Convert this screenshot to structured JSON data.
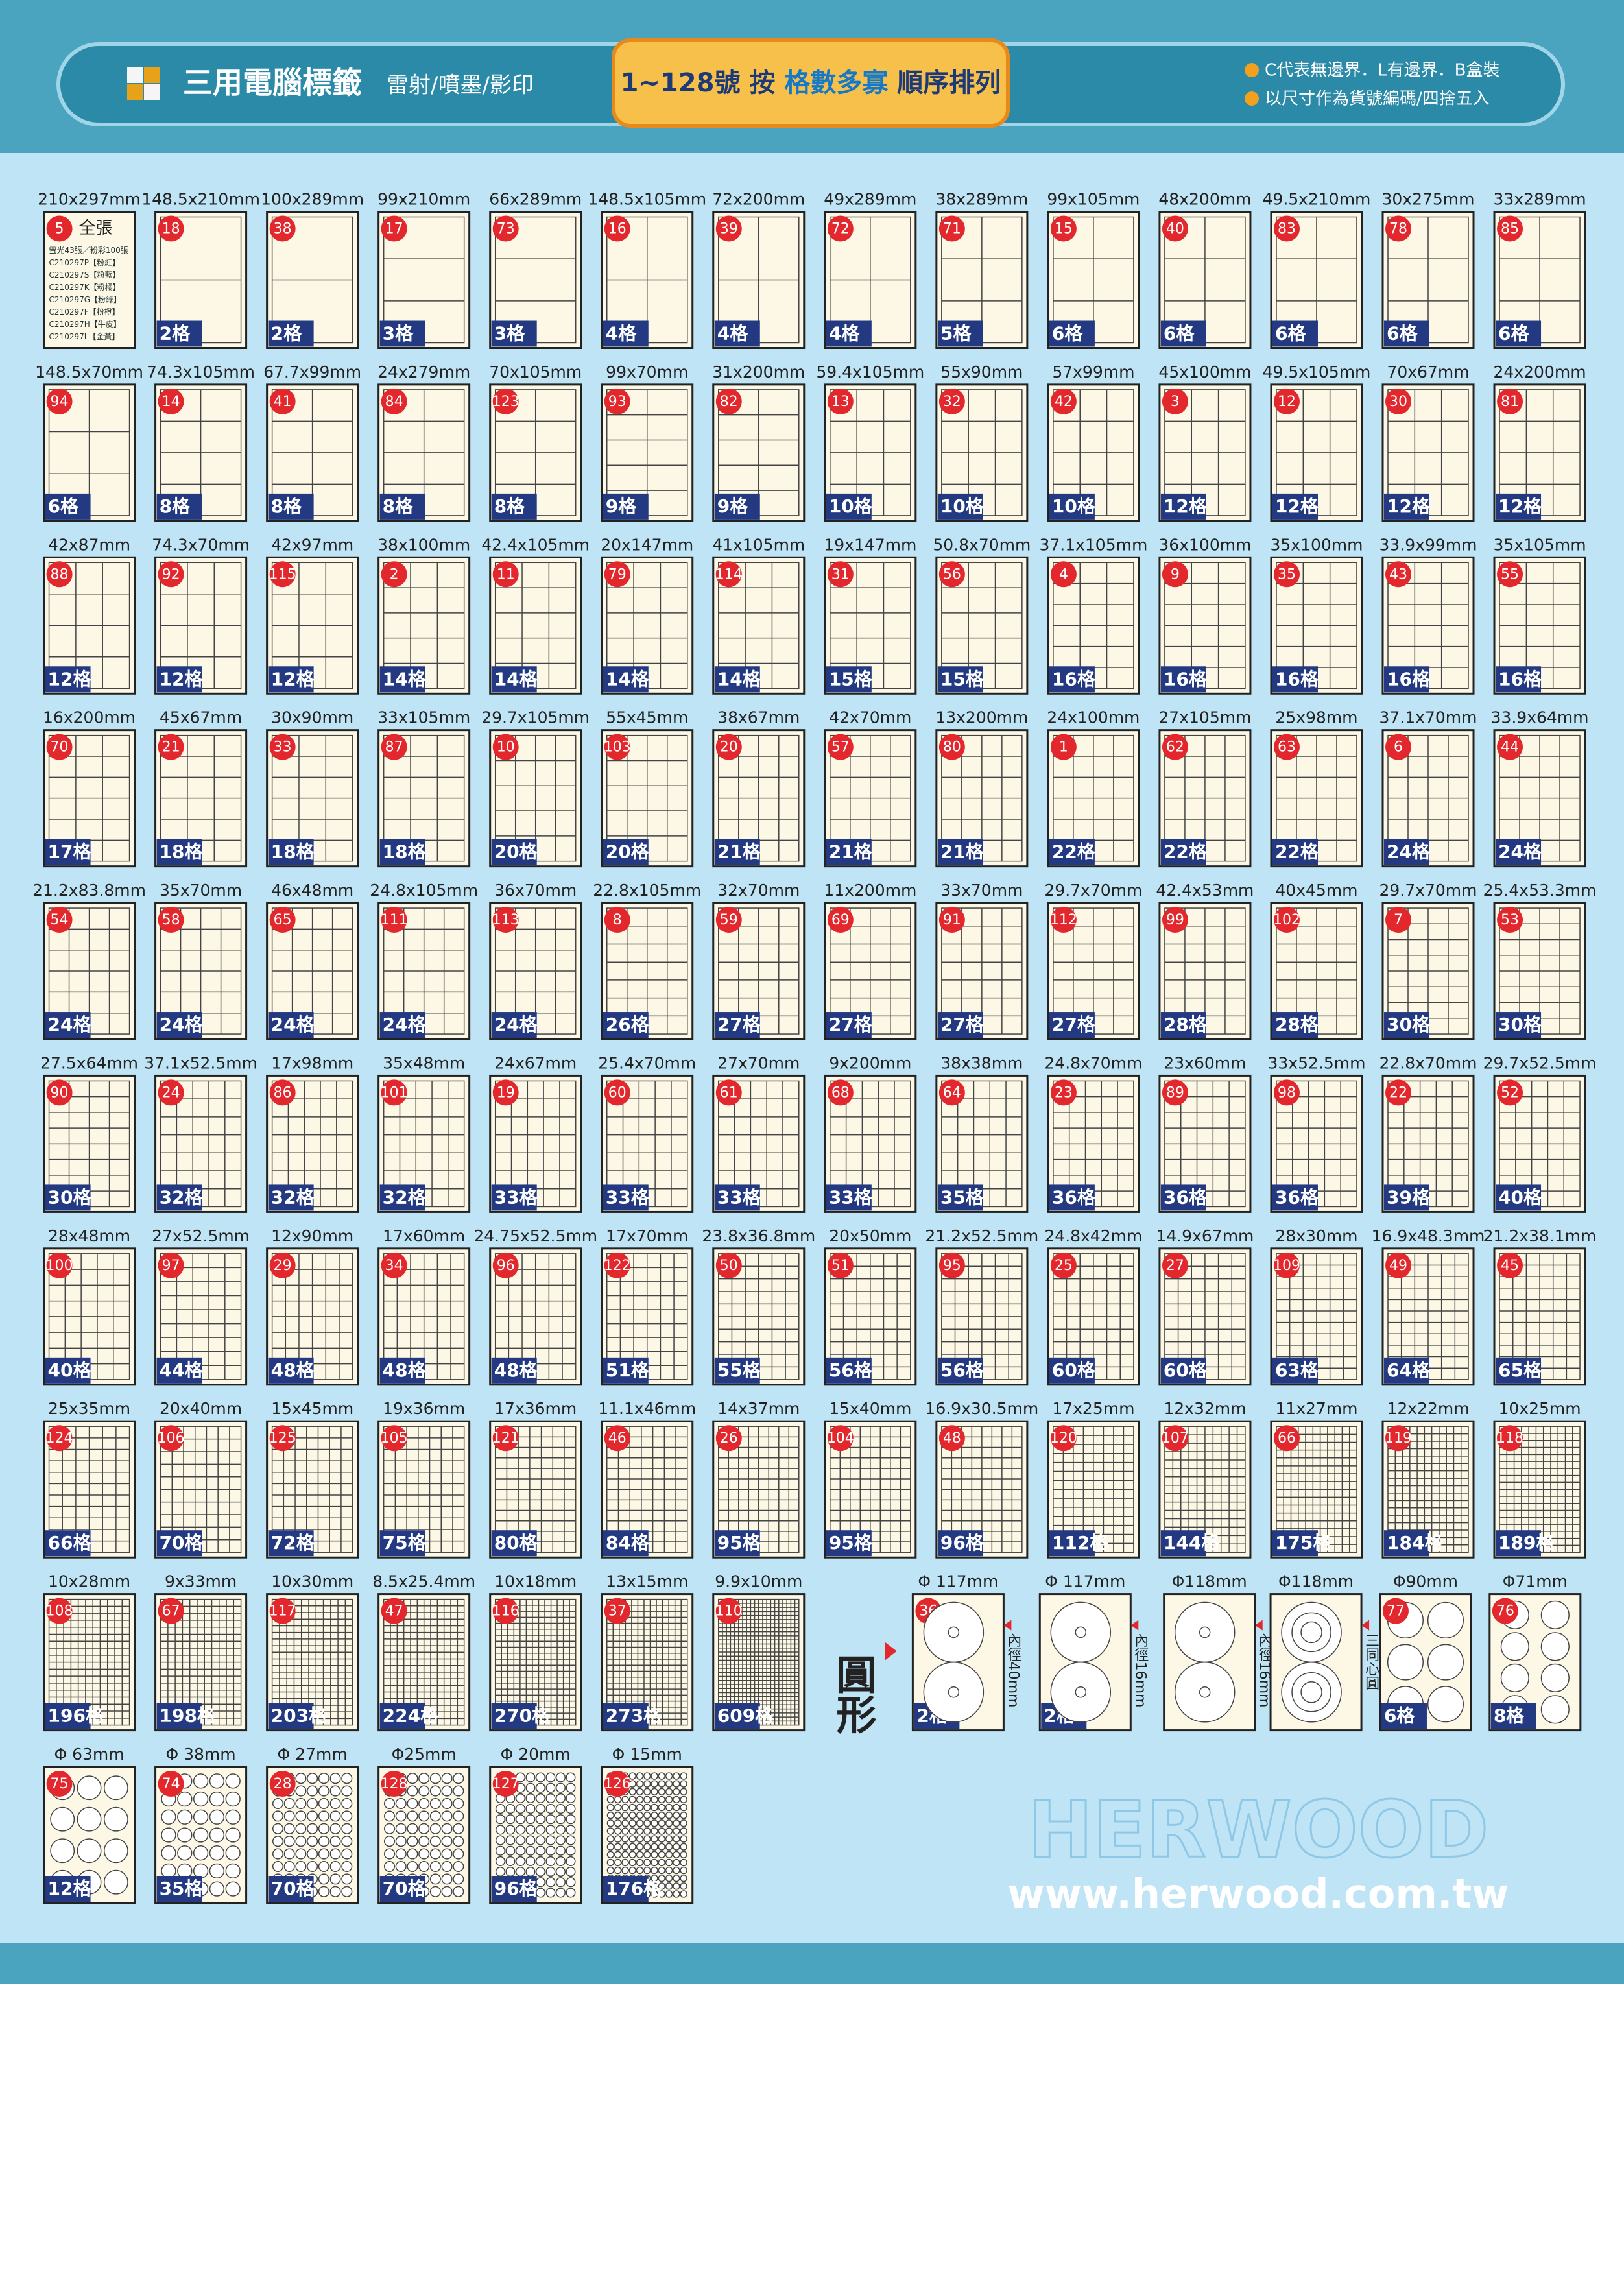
{
  "header": {
    "title": "三用電腦標籤",
    "subtitle": "雷射/噴墨/影印",
    "banner": [
      "1~128號 按 ",
      "格數多寡",
      " 順序排列"
    ],
    "notes": [
      "C代表無邊界．L有邊界．B盒裝",
      "以尺寸作為貨號編碼/四捨五入"
    ]
  },
  "sheets": [
    [
      {
        "size": "210x297mm",
        "no": 5,
        "title": "全張",
        "lines": [
          "螢光43張／粉彩100張",
          "C210297P【粉紅】",
          "C210297S【粉藍】",
          "C210297K【粉橘】",
          "C210297G【粉綠】",
          "C210297F【粉橙】",
          "C210297H【牛皮】",
          "C210297L【金黃】"
        ]
      },
      {
        "size": "148.5x210mm",
        "no": 18,
        "count": "2格"
      },
      {
        "size": "100x289mm",
        "no": 38,
        "count": "2格"
      },
      {
        "size": "99x210mm",
        "no": 17,
        "count": "3格"
      },
      {
        "size": "66x289mm",
        "no": 73,
        "count": "3格"
      },
      {
        "size": "148.5x105mm",
        "no": 16,
        "count": "4格"
      },
      {
        "size": "72x200mm",
        "no": 39,
        "count": "4格"
      },
      {
        "size": "49x289mm",
        "no": 72,
        "count": "4格"
      },
      {
        "size": "38x289mm",
        "no": 71,
        "count": "5格"
      },
      {
        "size": "99x105mm",
        "no": 15,
        "count": "6格"
      },
      {
        "size": "48x200mm",
        "no": 40,
        "count": "6格"
      },
      {
        "size": "49.5x210mm",
        "no": 83,
        "count": "6格"
      },
      {
        "size": "30x275mm",
        "no": 78,
        "count": "6格"
      },
      {
        "size": "33x289mm",
        "no": 85,
        "count": "6格"
      }
    ],
    [
      {
        "size": "148.5x70mm",
        "no": 94,
        "count": "6格"
      },
      {
        "size": "74.3x105mm",
        "no": 14,
        "count": "8格"
      },
      {
        "size": "67.7x99mm",
        "no": 41,
        "count": "8格"
      },
      {
        "size": "24x279mm",
        "no": 84,
        "count": "8格"
      },
      {
        "size": "70x105mm",
        "no": 123,
        "count": "8格"
      },
      {
        "size": "99x70mm",
        "no": 93,
        "count": "9格"
      },
      {
        "size": "31x200mm",
        "no": 82,
        "count": "9格"
      },
      {
        "size": "59.4x105mm",
        "no": 13,
        "count": "10格"
      },
      {
        "size": "55x90mm",
        "no": 32,
        "count": "10格"
      },
      {
        "size": "57x99mm",
        "no": 42,
        "count": "10格"
      },
      {
        "size": "45x100mm",
        "no": 3,
        "count": "12格"
      },
      {
        "size": "49.5x105mm",
        "no": 12,
        "count": "12格"
      },
      {
        "size": "70x67mm",
        "no": 30,
        "count": "12格"
      },
      {
        "size": "24x200mm",
        "no": 81,
        "count": "12格"
      }
    ],
    [
      {
        "size": "42x87mm",
        "no": 88,
        "count": "12格"
      },
      {
        "size": "74.3x70mm",
        "no": 92,
        "count": "12格"
      },
      {
        "size": "42x97mm",
        "no": 115,
        "count": "12格"
      },
      {
        "size": "38x100mm",
        "no": 2,
        "count": "14格"
      },
      {
        "size": "42.4x105mm",
        "no": 11,
        "count": "14格"
      },
      {
        "size": "20x147mm",
        "no": 79,
        "count": "14格"
      },
      {
        "size": "41x105mm",
        "no": 114,
        "count": "14格"
      },
      {
        "size": "19x147mm",
        "no": 31,
        "count": "15格"
      },
      {
        "size": "50.8x70mm",
        "no": 56,
        "count": "15格"
      },
      {
        "size": "37.1x105mm",
        "no": 4,
        "count": "16格"
      },
      {
        "size": "36x100mm",
        "no": 9,
        "count": "16格"
      },
      {
        "size": "35x100mm",
        "no": 35,
        "count": "16格"
      },
      {
        "size": "33.9x99mm",
        "no": 43,
        "count": "16格"
      },
      {
        "size": "35x105mm",
        "no": 55,
        "count": "16格"
      }
    ],
    [
      {
        "size": "16x200mm",
        "no": 70,
        "count": "17格"
      },
      {
        "size": "45x67mm",
        "no": 21,
        "count": "18格"
      },
      {
        "size": "30x90mm",
        "no": 33,
        "count": "18格"
      },
      {
        "size": "33x105mm",
        "no": 87,
        "count": "18格"
      },
      {
        "size": "29.7x105mm",
        "no": 10,
        "count": "20格"
      },
      {
        "size": "55x45mm",
        "no": 103,
        "count": "20格"
      },
      {
        "size": "38x67mm",
        "no": 20,
        "count": "21格"
      },
      {
        "size": "42x70mm",
        "no": 57,
        "count": "21格"
      },
      {
        "size": "13x200mm",
        "no": 80,
        "count": "21格"
      },
      {
        "size": "24x100mm",
        "no": 1,
        "count": "22格"
      },
      {
        "size": "27x105mm",
        "no": 62,
        "count": "22格"
      },
      {
        "size": "25x98mm",
        "no": 63,
        "count": "22格"
      },
      {
        "size": "37.1x70mm",
        "no": 6,
        "count": "24格"
      },
      {
        "size": "33.9x64mm",
        "no": 44,
        "count": "24格"
      }
    ],
    [
      {
        "size": "21.2x83.8mm",
        "no": 54,
        "count": "24格"
      },
      {
        "size": "35x70mm",
        "no": 58,
        "count": "24格"
      },
      {
        "size": "46x48mm",
        "no": 65,
        "count": "24格"
      },
      {
        "size": "24.8x105mm",
        "no": 111,
        "count": "24格"
      },
      {
        "size": "36x70mm",
        "no": 113,
        "count": "24格"
      },
      {
        "size": "22.8x105mm",
        "no": 8,
        "count": "26格"
      },
      {
        "size": "32x70mm",
        "no": 59,
        "count": "27格"
      },
      {
        "size": "11x200mm",
        "no": 69,
        "count": "27格"
      },
      {
        "size": "33x70mm",
        "no": 91,
        "count": "27格"
      },
      {
        "size": "29.7x70mm",
        "no": 112,
        "count": "27格"
      },
      {
        "size": "42.4x53mm",
        "no": 99,
        "count": "28格"
      },
      {
        "size": "40x45mm",
        "no": 102,
        "count": "28格"
      },
      {
        "size": "29.7x70mm",
        "no": 7,
        "count": "30格"
      },
      {
        "size": "25.4x53.3mm",
        "no": 53,
        "count": "30格"
      }
    ],
    [
      {
        "size": "27.5x64mm",
        "no": 90,
        "count": "30格"
      },
      {
        "size": "37.1x52.5mm",
        "no": 24,
        "count": "32格"
      },
      {
        "size": "17x98mm",
        "no": 86,
        "count": "32格"
      },
      {
        "size": "35x48mm",
        "no": 101,
        "count": "32格"
      },
      {
        "size": "24x67mm",
        "no": 19,
        "count": "33格"
      },
      {
        "size": "25.4x70mm",
        "no": 60,
        "count": "33格"
      },
      {
        "size": "27x70mm",
        "no": 61,
        "count": "33格"
      },
      {
        "size": "9x200mm",
        "no": 68,
        "count": "33格"
      },
      {
        "size": "38x38mm",
        "no": 64,
        "count": "35格"
      },
      {
        "size": "24.8x70mm",
        "no": 23,
        "count": "36格"
      },
      {
        "size": "23x60mm",
        "no": 89,
        "count": "36格"
      },
      {
        "size": "33x52.5mm",
        "no": 98,
        "count": "36格"
      },
      {
        "size": "22.8x70mm",
        "no": 22,
        "count": "39格"
      },
      {
        "size": "29.7x52.5mm",
        "no": 52,
        "count": "40格"
      }
    ],
    [
      {
        "size": "28x48mm",
        "no": 100,
        "count": "40格"
      },
      {
        "size": "27x52.5mm",
        "no": 97,
        "count": "44格"
      },
      {
        "size": "12x90mm",
        "no": 29,
        "count": "48格"
      },
      {
        "size": "17x60mm",
        "no": 34,
        "count": "48格"
      },
      {
        "size": "24.75x52.5mm",
        "no": 96,
        "count": "48格"
      },
      {
        "size": "17x70mm",
        "no": 122,
        "count": "51格"
      },
      {
        "size": "23.8x36.8mm",
        "no": 50,
        "count": "55格"
      },
      {
        "size": "20x50mm",
        "no": 51,
        "count": "56格"
      },
      {
        "size": "21.2x52.5mm",
        "no": 95,
        "count": "56格"
      },
      {
        "size": "24.8x42mm",
        "no": 25,
        "count": "60格"
      },
      {
        "size": "14.9x67mm",
        "no": 27,
        "count": "60格"
      },
      {
        "size": "28x30mm",
        "no": 109,
        "count": "63格"
      },
      {
        "size": "16.9x48.3mm",
        "no": 49,
        "count": "64格"
      },
      {
        "size": "21.2x38.1mm",
        "no": 45,
        "count": "65格"
      }
    ],
    [
      {
        "size": "25x35mm",
        "no": 124,
        "count": "66格"
      },
      {
        "size": "20x40mm",
        "no": 106,
        "count": "70格"
      },
      {
        "size": "15x45mm",
        "no": 125,
        "count": "72格"
      },
      {
        "size": "19x36mm",
        "no": 105,
        "count": "75格"
      },
      {
        "size": "17x36mm",
        "no": 121,
        "count": "80格"
      },
      {
        "size": "11.1x46mm",
        "no": 46,
        "count": "84格"
      },
      {
        "size": "14x37mm",
        "no": 26,
        "count": "95格"
      },
      {
        "size": "15x40mm",
        "no": 104,
        "count": "95格"
      },
      {
        "size": "16.9x30.5mm",
        "no": 48,
        "count": "96格"
      },
      {
        "size": "17x25mm",
        "no": 120,
        "count": "112格"
      },
      {
        "size": "12x32mm",
        "no": 107,
        "count": "144格"
      },
      {
        "size": "11x27mm",
        "no": 66,
        "count": "175格"
      },
      {
        "size": "12x22mm",
        "no": 119,
        "count": "184格"
      },
      {
        "size": "10x25mm",
        "no": 118,
        "count": "189格"
      }
    ],
    [
      {
        "size": "10x28mm",
        "no": 108,
        "count": "196格"
      },
      {
        "size": "9x33mm",
        "no": 67,
        "count": "198格"
      },
      {
        "size": "10x30mm",
        "no": 117,
        "count": "203格"
      },
      {
        "size": "8.5x25.4mm",
        "no": 47,
        "count": "224格"
      },
      {
        "size": "10x18mm",
        "no": 116,
        "count": "270格"
      },
      {
        "size": "13x15mm",
        "no": 37,
        "count": "273格"
      },
      {
        "size": "9.9x10mm",
        "no": 110,
        "count": "609格"
      }
    ],
    [
      {
        "size": "Φ 63mm",
        "no": 75,
        "count": "12格"
      },
      {
        "size": "Φ 38mm",
        "no": 74,
        "count": "35格"
      },
      {
        "size": "Φ 27mm",
        "no": 28,
        "count": "70格"
      },
      {
        "size": "Φ25mm",
        "no": 128,
        "count": "70格"
      },
      {
        "size": "Φ 20mm",
        "no": 127,
        "count": "96格"
      },
      {
        "size": "Φ 15mm",
        "no": 126,
        "count": "176格"
      }
    ]
  ],
  "round_label": "圓形",
  "round": [
    {
      "size": "Φ 117mm",
      "no": 36,
      "count": "2格",
      "note": "內徑40mm"
    },
    {
      "size": "Φ 117mm",
      "count": "2格",
      "note": "內徑16mm"
    },
    {
      "size": "Φ118mm",
      "note": "內徑16mm"
    },
    {
      "size": "Φ118mm",
      "note": "三同心圓"
    },
    {
      "size": "Φ90mm",
      "no": 77,
      "count": "6格"
    },
    {
      "size": "Φ71mm",
      "no": 76,
      "count": "8格"
    }
  ],
  "footer": {
    "brand": "HERWOOD",
    "url": "www.herwood.com.tw"
  }
}
